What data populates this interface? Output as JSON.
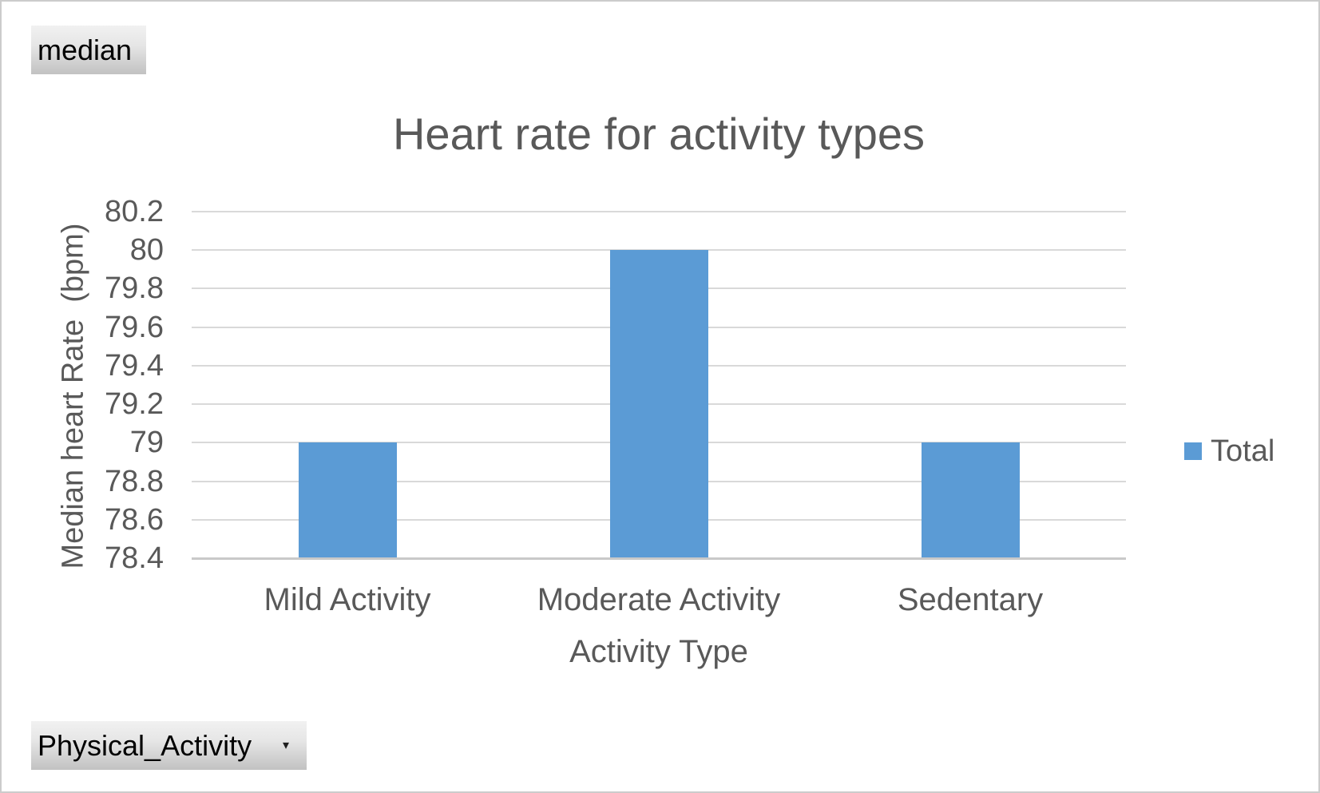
{
  "pivot_fields": {
    "value_field_button": {
      "label": "median"
    },
    "axis_field_button": {
      "label": "Physical_Activity",
      "dropdown_icon": "▾"
    }
  },
  "chart_data": {
    "type": "bar",
    "title": "Heart rate for activity types",
    "categories": [
      "Mild Activity",
      "Moderate Activity",
      "Sedentary"
    ],
    "series": [
      {
        "name": "Total",
        "values": [
          79,
          80,
          79
        ]
      }
    ],
    "xlabel": "Activity Type",
    "ylabel": "Median heart Rate  (bpm)",
    "ylim": [
      78.4,
      80.2
    ],
    "ytick_step": 0.2,
    "ytick_labels": [
      "80.2",
      "80",
      "79.8",
      "79.6",
      "79.4",
      "79.2",
      "79",
      "78.8",
      "78.6",
      "78.4"
    ],
    "grid": true,
    "legend": {
      "position": "right",
      "entries": [
        {
          "label": "Total",
          "swatch_color": "#5B9BD5"
        }
      ]
    },
    "colors": {
      "bar": "#5B9BD5",
      "text": "#595959",
      "gridline": "#D9D9D9",
      "axis_line": "#C9C9C9"
    }
  }
}
